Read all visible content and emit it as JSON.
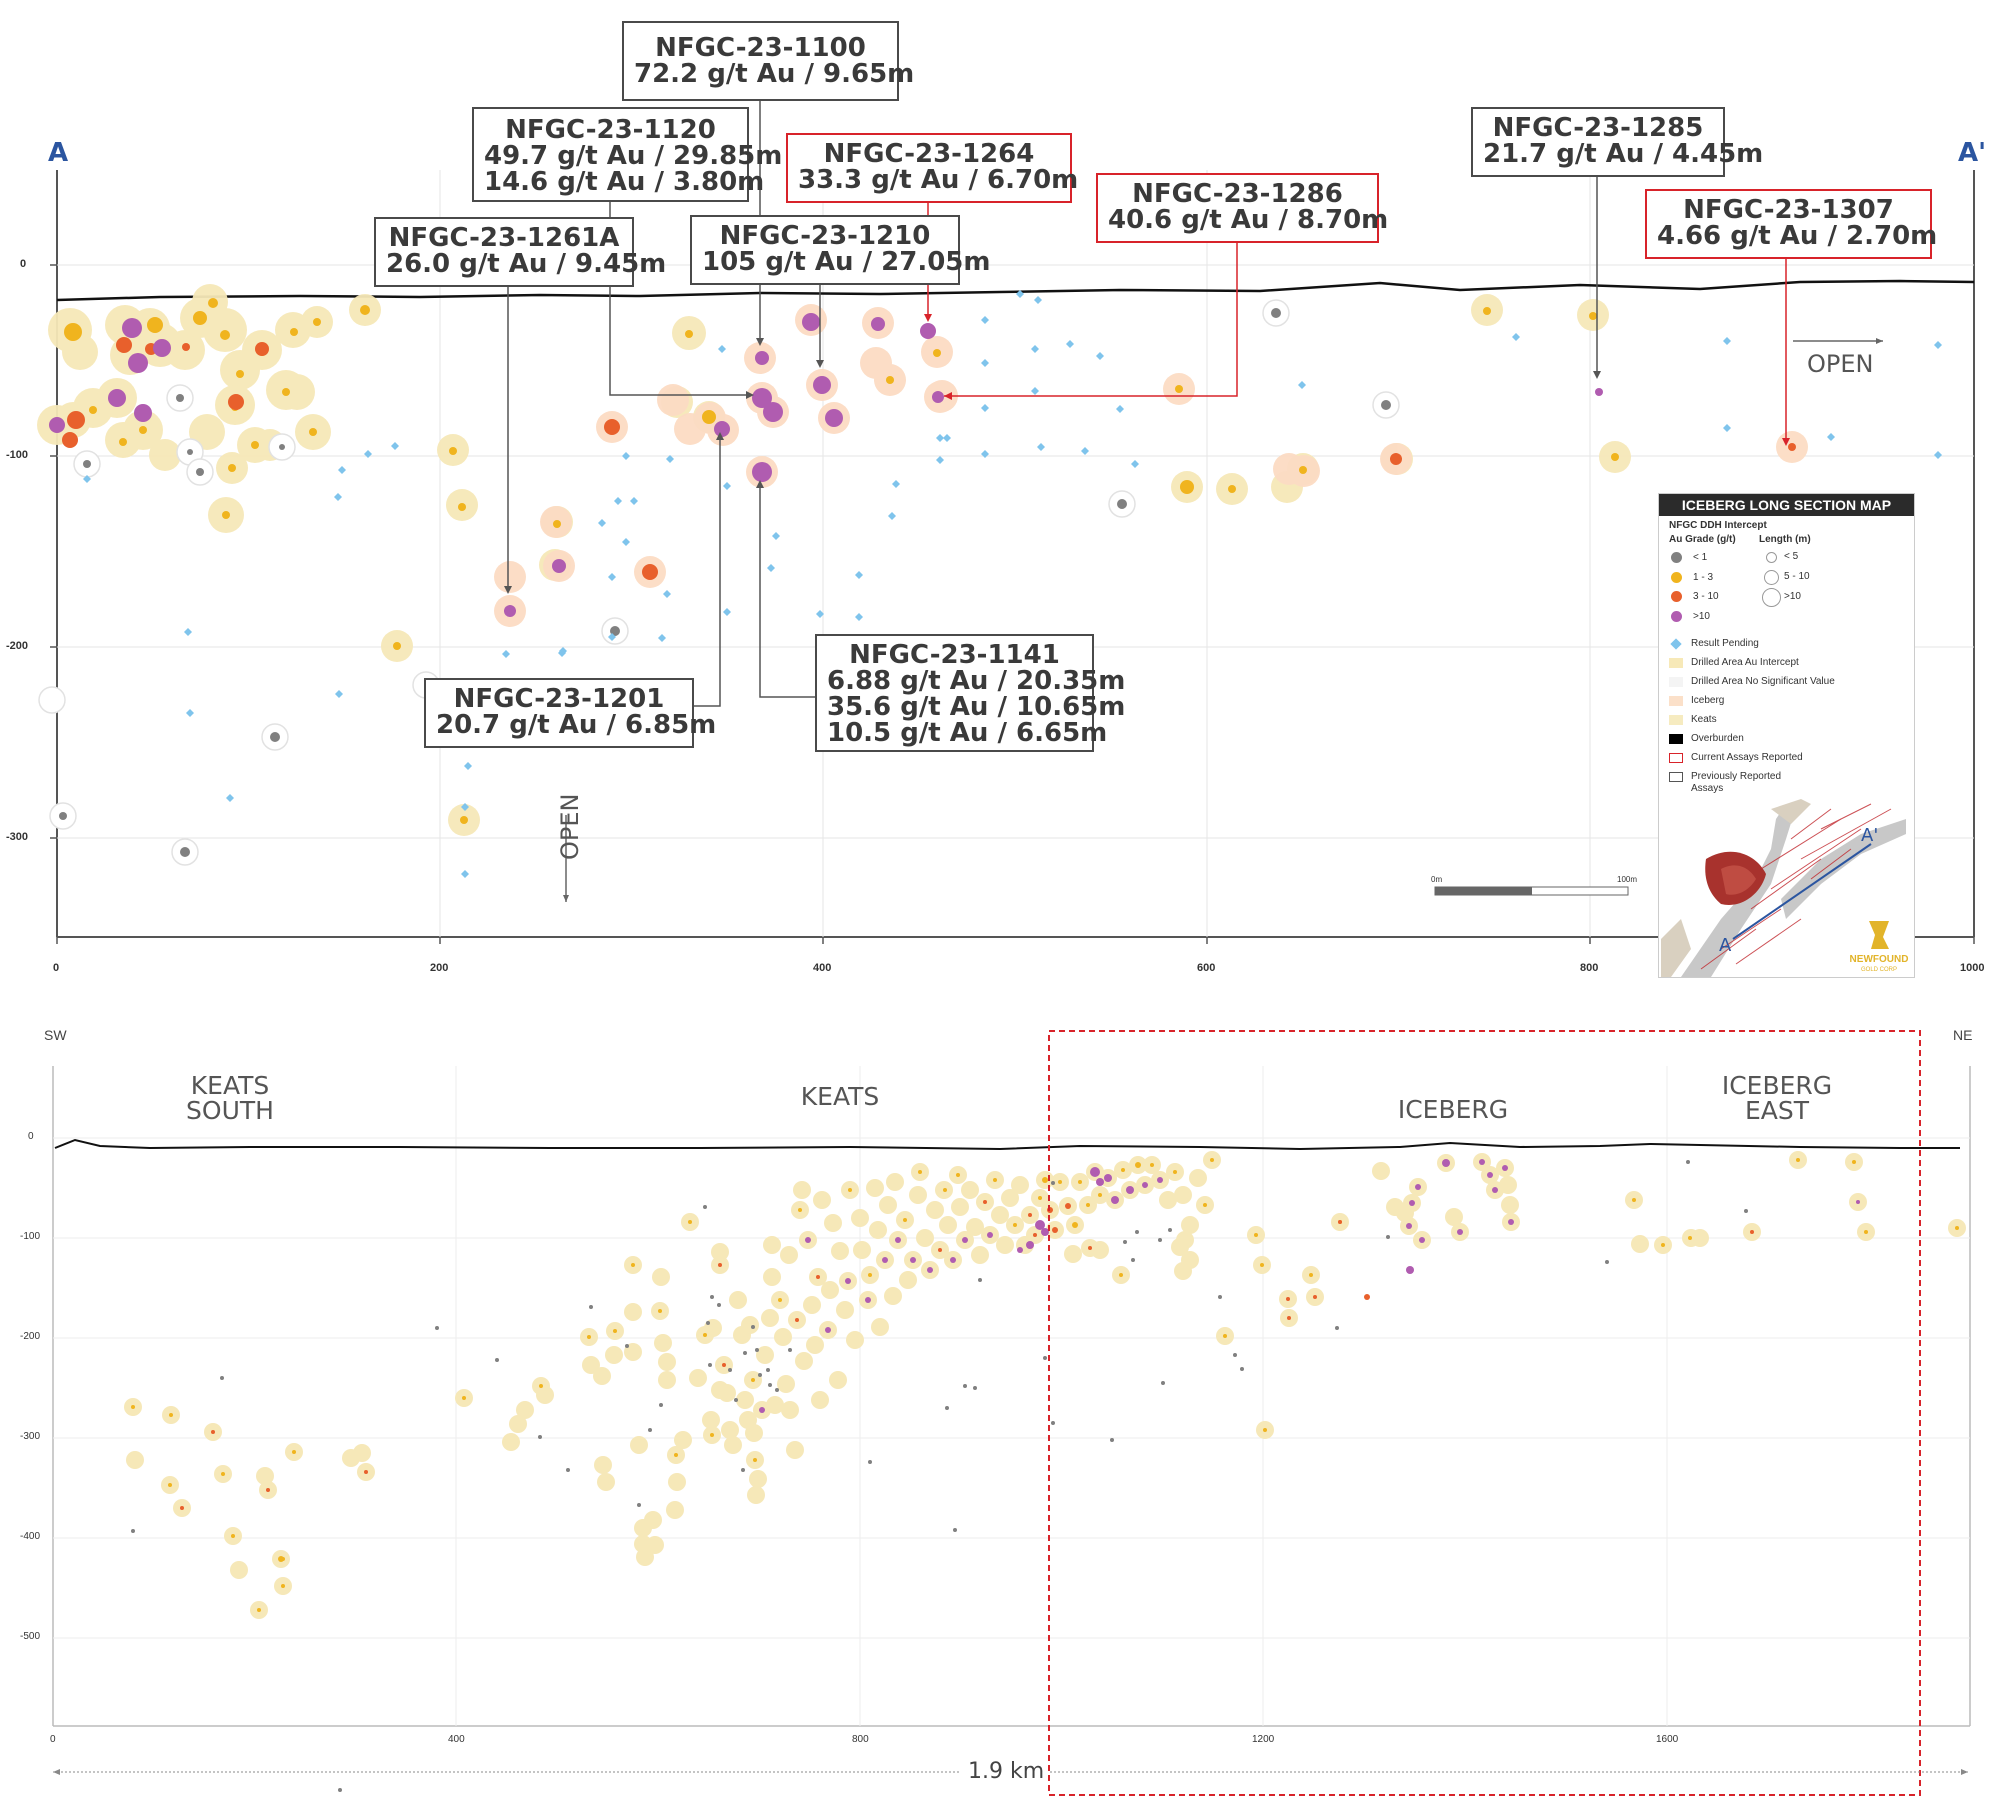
{
  "top_section": {
    "endpoint_left": "A",
    "endpoint_right": "A'",
    "y_ticks": [
      "0",
      "-100",
      "-200",
      "-300"
    ],
    "x_ticks": [
      "0",
      "200",
      "400",
      "600",
      "800",
      "1000"
    ],
    "open_right": "OPEN",
    "open_down": "OPEN",
    "scale_start": "0m",
    "scale_end": "100m"
  },
  "callouts": [
    {
      "hole": "NFGC-23-1100",
      "lines": [
        "72.2 g/t Au / 9.65m"
      ],
      "status": "previous"
    },
    {
      "hole": "NFGC-23-1120",
      "lines": [
        "49.7 g/t Au / 29.85m",
        "14.6 g/t Au / 3.80m"
      ],
      "status": "previous"
    },
    {
      "hole": "NFGC-23-1264",
      "lines": [
        "33.3 g/t Au / 6.70m"
      ],
      "status": "current"
    },
    {
      "hole": "NFGC-23-1286",
      "lines": [
        "40.6 g/t Au / 8.70m"
      ],
      "status": "current"
    },
    {
      "hole": "NFGC-23-1285",
      "lines": [
        "21.7 g/t Au / 4.45m"
      ],
      "status": "previous"
    },
    {
      "hole": "NFGC-23-1307",
      "lines": [
        "4.66 g/t Au / 2.70m"
      ],
      "status": "current"
    },
    {
      "hole": "NFGC-23-1261A",
      "lines": [
        "26.0 g/t Au / 9.45m"
      ],
      "status": "previous"
    },
    {
      "hole": "NFGC-23-1210",
      "lines": [
        "105 g/t Au / 27.05m"
      ],
      "status": "previous"
    },
    {
      "hole": "NFGC-23-1201",
      "lines": [
        "20.7 g/t Au / 6.85m"
      ],
      "status": "previous"
    },
    {
      "hole": "NFGC-23-1141",
      "lines": [
        "6.88 g/t Au / 20.35m",
        "35.6 g/t Au / 10.65m",
        "10.5 g/t Au / 6.65m"
      ],
      "status": "previous"
    }
  ],
  "legend": {
    "title": "ICEBERG LONG SECTION MAP",
    "subtitle": "NFGC DDH Intercept",
    "grade_header": "Au Grade (g/t)",
    "length_header": "Length (m)",
    "grades": [
      {
        "label": "< 1",
        "color": "#808080"
      },
      {
        "label": "1 - 3",
        "color": "#f0b41e"
      },
      {
        "label": "3 - 10",
        "color": "#e8602c"
      },
      {
        "label": ">10",
        "color": "#b05cb0"
      }
    ],
    "lengths": [
      "< 5",
      "5 - 10",
      ">10"
    ],
    "items": [
      {
        "label": "Result Pending",
        "color": "#7fc4ec"
      },
      {
        "label": "Drilled Area Au Intercept",
        "color": "#f7e9b8"
      },
      {
        "label": "Drilled Area No Significant Value",
        "color": "#f4f4f4"
      },
      {
        "label": "Iceberg",
        "color": "#fbe0c9"
      },
      {
        "label": "Keats",
        "color": "#f6ebc0"
      },
      {
        "label": "Overburden",
        "color": "#000000"
      },
      {
        "label": "Current Assays Reported",
        "color": "#d8232a"
      },
      {
        "label": "Previously Reported Assays",
        "color": "#555555"
      }
    ],
    "inset_a": "A",
    "inset_a_prime": "A'",
    "logo_top": "NEWFOUND",
    "logo_bottom": "GOLD CORP"
  },
  "bottom_section": {
    "sw": "SW",
    "ne": "NE",
    "zones": [
      {
        "name": "KEATS SOUTH"
      },
      {
        "name": "KEATS"
      },
      {
        "name": "ICEBERG"
      },
      {
        "name": "ICEBERG EAST"
      }
    ],
    "y_ticks": [
      "0",
      "-100",
      "-200",
      "-300",
      "-400",
      "-500"
    ],
    "x_ticks": [
      "0",
      "400",
      "800",
      "1200",
      "1600"
    ],
    "length_label": "1.9 km"
  }
}
